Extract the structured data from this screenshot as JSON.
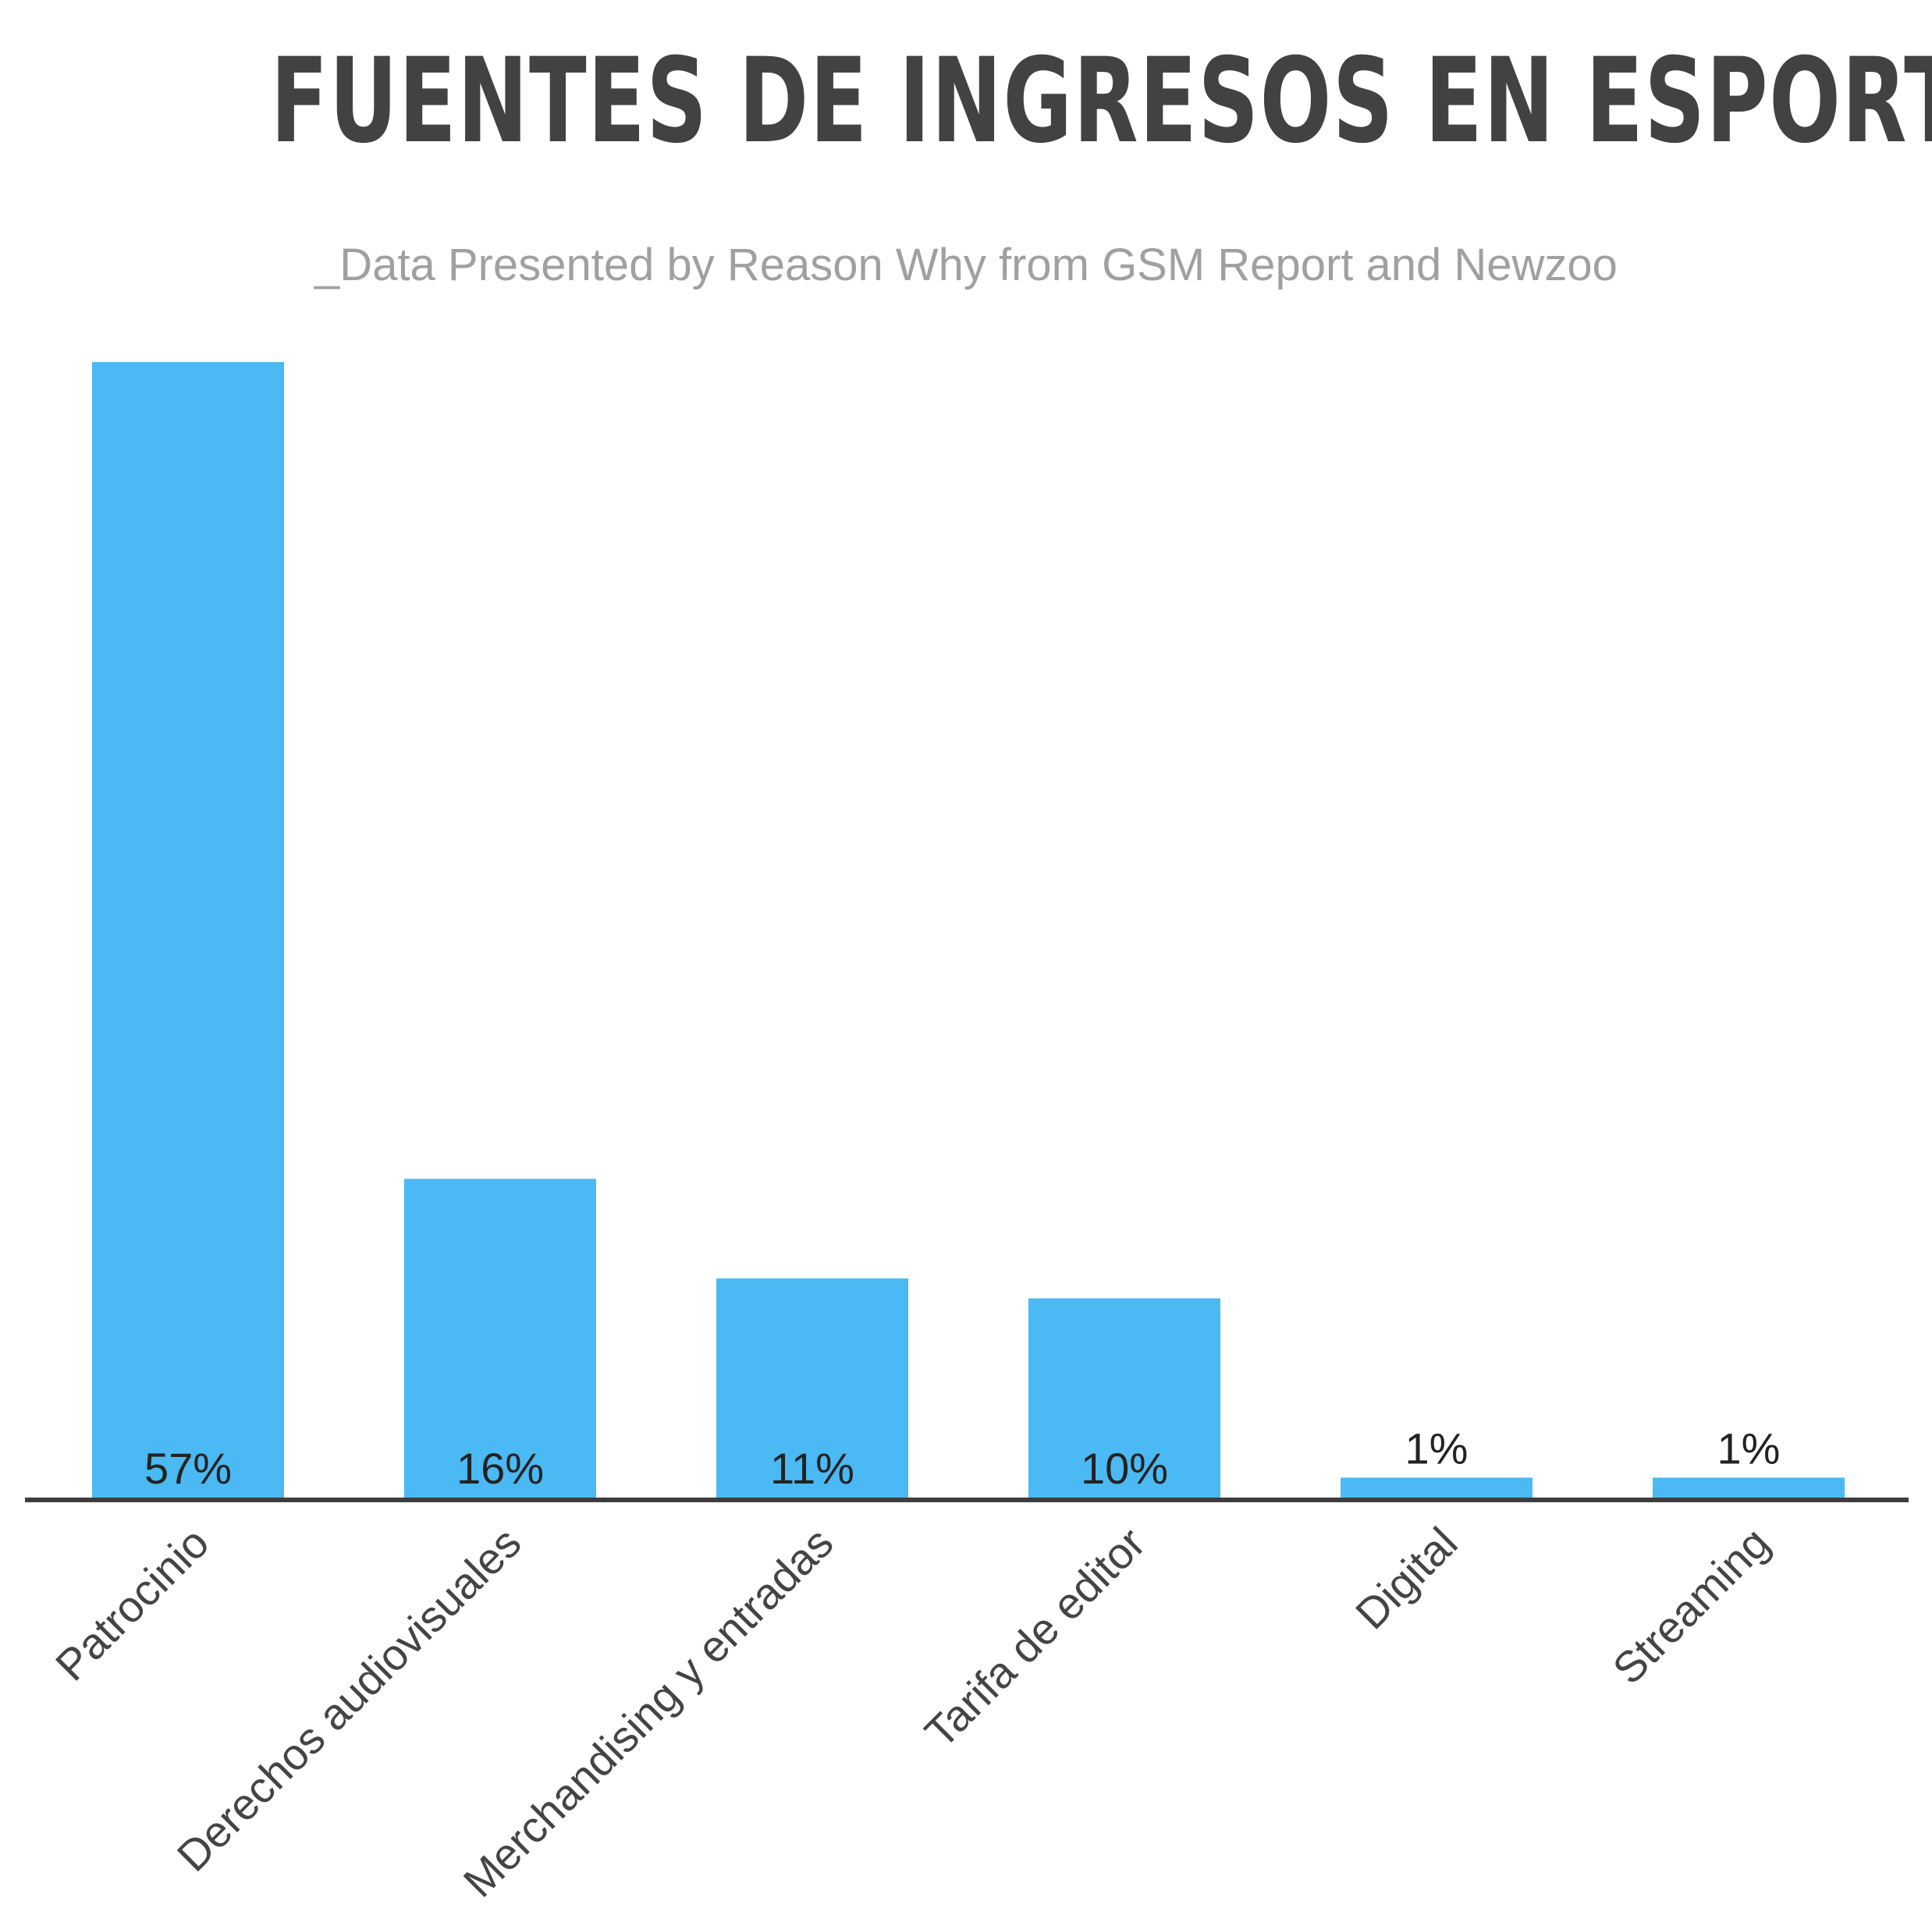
{
  "chart_data": {
    "type": "bar",
    "title": "FUENTES DE INGRESOS EN ESPORTS",
    "subtitle": "_Data Presented by Reason Why from GSM Report and Newzoo",
    "categories": [
      "Patrocinio",
      "Derechos audiovisuales",
      "Merchandising y entradas",
      "Tarifa de editor",
      "Digital",
      "Streaming"
    ],
    "values": [
      57,
      16,
      11,
      10,
      1,
      1
    ],
    "value_labels": [
      "57%",
      "16%",
      "11%",
      "10%",
      "1%",
      "1%"
    ],
    "ylim": [
      0,
      57
    ],
    "grid": false,
    "legend": "none",
    "bar_color": "#4bb9f3"
  }
}
